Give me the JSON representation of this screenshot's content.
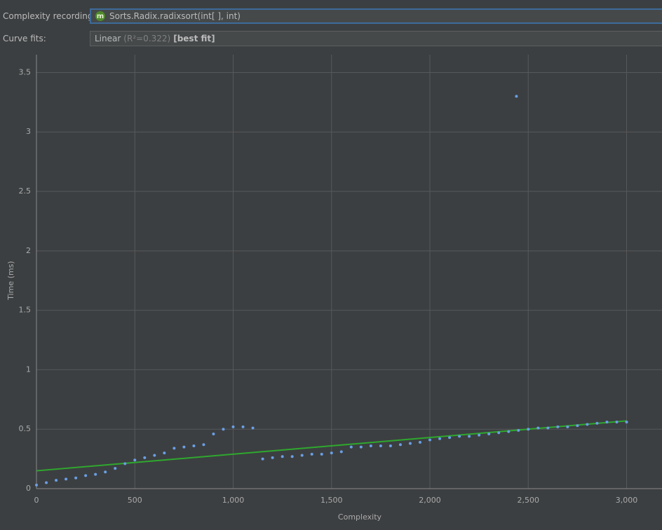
{
  "controls": {
    "recording_label": "Complexity recording:",
    "recording_icon": "m",
    "recording_value": "Sorts.Radix.radixsort(int[ ], int)",
    "fits_label": "Curve fits:",
    "fit_name": "Linear",
    "fit_r2": "(R²=0.322)",
    "fit_tag": "[best fit]"
  },
  "chart_data": {
    "type": "scatter",
    "x_label": "Complexity",
    "y_label": "Time (ms)",
    "x": [
      0,
      50,
      100,
      150,
      200,
      250,
      300,
      350,
      400,
      450,
      500,
      550,
      600,
      650,
      700,
      750,
      800,
      850,
      900,
      950,
      1000,
      1050,
      1100,
      1150,
      1200,
      1250,
      1300,
      1350,
      1400,
      1450,
      1500,
      1550,
      1600,
      1650,
      1700,
      1750,
      1800,
      1850,
      1900,
      1950,
      2000,
      2050,
      2100,
      2150,
      2200,
      2250,
      2300,
      2350,
      2400,
      2450,
      2500,
      2550,
      2600,
      2650,
      2700,
      2750,
      2800,
      2850,
      2900,
      2950,
      3000,
      2440
    ],
    "values": [
      0.03,
      0.05,
      0.07,
      0.08,
      0.09,
      0.11,
      0.12,
      0.14,
      0.17,
      0.21,
      0.24,
      0.26,
      0.28,
      0.3,
      0.34,
      0.35,
      0.36,
      0.37,
      0.46,
      0.5,
      0.52,
      0.52,
      0.51,
      0.25,
      0.26,
      0.27,
      0.27,
      0.28,
      0.29,
      0.29,
      0.3,
      0.31,
      0.35,
      0.35,
      0.36,
      0.36,
      0.36,
      0.37,
      0.38,
      0.39,
      0.41,
      0.42,
      0.43,
      0.44,
      0.44,
      0.45,
      0.46,
      0.47,
      0.48,
      0.49,
      0.5,
      0.51,
      0.51,
      0.52,
      0.52,
      0.53,
      0.54,
      0.55,
      0.56,
      0.56,
      0.56,
      3.3
    ],
    "color": "#6a9fe6",
    "fit": {
      "x": [
        0,
        3000
      ],
      "values": [
        0.15,
        0.57
      ],
      "color": "#2ea82e"
    },
    "xlim": [
      0,
      3180
    ],
    "ylim": [
      0,
      3.65
    ],
    "xticks": [
      0,
      500,
      {
        "value": 1000,
        "label": "1,000"
      },
      {
        "value": 1500,
        "label": "1,500"
      },
      {
        "value": 2000,
        "label": "2,000"
      },
      {
        "value": 2500,
        "label": "2,500"
      },
      {
        "value": 3000,
        "label": "3,000"
      }
    ],
    "yticks": [
      0,
      0.5,
      1,
      1.5,
      2,
      2.5,
      3,
      3.5
    ],
    "grid": true
  }
}
